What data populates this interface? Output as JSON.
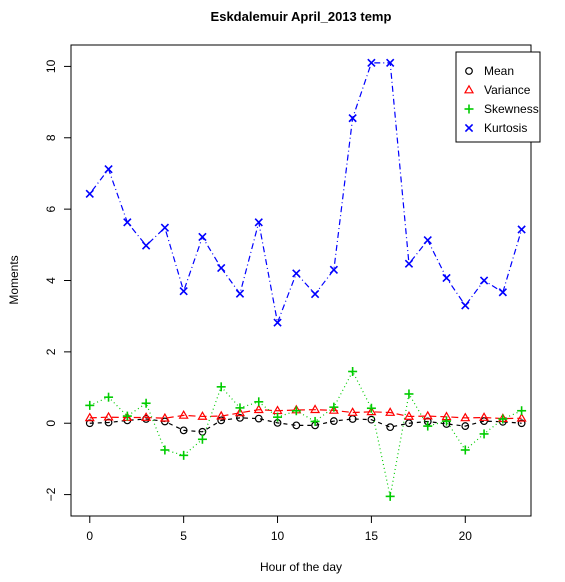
{
  "chart_data": {
    "type": "line",
    "title": "Eskdalemuir April_2013 temp",
    "xlabel": "Hour of the day",
    "ylabel": "Moments",
    "xlim": [
      -1,
      23.5
    ],
    "ylim": [
      -2.6,
      10.6
    ],
    "xticks": [
      0,
      5,
      10,
      15,
      20
    ],
    "yticks": [
      -2,
      0,
      2,
      4,
      6,
      8,
      10
    ],
    "grid": false,
    "legend_position": "top-right",
    "x": [
      0,
      1,
      2,
      3,
      4,
      5,
      6,
      7,
      8,
      9,
      10,
      11,
      12,
      13,
      14,
      15,
      16,
      17,
      18,
      19,
      20,
      21,
      22,
      23
    ],
    "series": [
      {
        "name": "Mean",
        "color": "#000000",
        "marker": "circle",
        "line": "dashed",
        "values": [
          0.0,
          0.02,
          0.08,
          0.12,
          0.05,
          -0.2,
          -0.24,
          0.08,
          0.15,
          0.13,
          0.01,
          -0.06,
          -0.06,
          0.06,
          0.12,
          0.1,
          -0.11,
          0.0,
          0.05,
          -0.02,
          -0.08,
          0.06,
          0.04,
          0.0
        ]
      },
      {
        "name": "Variance",
        "color": "#ff0000",
        "marker": "triangle",
        "line": "longdash",
        "values": [
          0.15,
          0.17,
          0.16,
          0.16,
          0.14,
          0.22,
          0.19,
          0.2,
          0.29,
          0.38,
          0.35,
          0.37,
          0.38,
          0.36,
          0.3,
          0.32,
          0.3,
          0.19,
          0.2,
          0.18,
          0.15,
          0.16,
          0.13,
          0.14
        ]
      },
      {
        "name": "Skewness",
        "color": "#00cc00",
        "marker": "plus",
        "line": "dotted",
        "values": [
          0.5,
          0.73,
          0.2,
          0.56,
          -0.75,
          -0.9,
          -0.45,
          1.02,
          0.43,
          0.6,
          0.17,
          0.35,
          0.05,
          0.45,
          1.45,
          0.42,
          -2.05,
          0.82,
          -0.08,
          0.06,
          -0.75,
          -0.3,
          0.12,
          0.35
        ]
      },
      {
        "name": "Kurtosis",
        "color": "#0000ff",
        "marker": "x",
        "line": "dotdash",
        "values": [
          6.43,
          7.12,
          5.63,
          4.98,
          5.48,
          3.7,
          5.22,
          4.35,
          3.63,
          5.63,
          2.82,
          4.2,
          3.62,
          4.3,
          8.55,
          10.1,
          10.1,
          4.47,
          5.13,
          4.07,
          3.3,
          4.0,
          3.67,
          5.43
        ]
      }
    ]
  }
}
